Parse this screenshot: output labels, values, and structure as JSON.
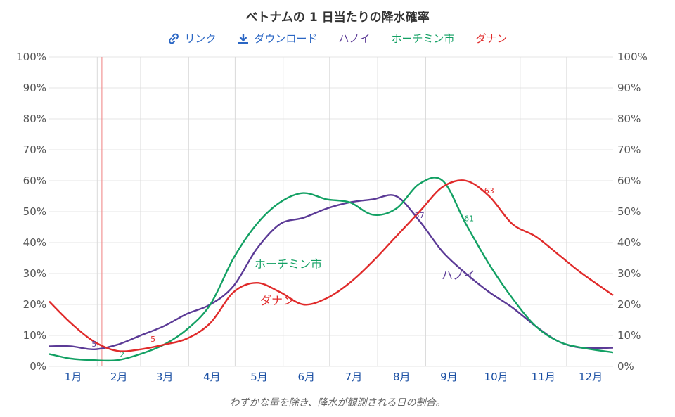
{
  "title": "ベトナムの 1 日当たりの降水確率",
  "caption": "わずかな量を除き、降水が観測される日の割合。",
  "toolbar": {
    "link_label": "リンク",
    "download_label": "ダウンロード"
  },
  "colors": {
    "hanoi": "#5b3a96",
    "hcmc": "#12a063",
    "danang": "#e02a2a",
    "marker": "#f08080",
    "link": "#2a66c4"
  },
  "chart_data": {
    "type": "line",
    "title": "ベトナムの 1 日当たりの降水確率",
    "ylim": [
      0,
      100
    ],
    "yticks": [
      "0%",
      "10%",
      "20%",
      "30%",
      "40%",
      "50%",
      "60%",
      "70%",
      "80%",
      "90%",
      "100%"
    ],
    "months": [
      "1月",
      "2月",
      "3月",
      "4月",
      "5月",
      "6月",
      "7月",
      "8月",
      "9月",
      "10月",
      "11月",
      "12月"
    ],
    "marker_day": 35,
    "x_days": [
      1,
      15,
      30,
      45,
      60,
      75,
      90,
      105,
      120,
      135,
      150,
      165,
      180,
      195,
      210,
      225,
      240,
      255,
      270,
      285,
      300,
      315,
      330,
      345,
      365
    ],
    "series": [
      {
        "name": "ハノイ",
        "color_key": "hanoi",
        "values": [
          6.5,
          6.5,
          5.5,
          7,
          10,
          13,
          17,
          20,
          26,
          38,
          46,
          48,
          51,
          53,
          54,
          55,
          47,
          37,
          30,
          24,
          19,
          13,
          8,
          6,
          6
        ]
      },
      {
        "name": "ホーチミン市",
        "color_key": "hcmc",
        "values": [
          4,
          2.5,
          2,
          2,
          4,
          7,
          12,
          20,
          35,
          46,
          53,
          56,
          54,
          53,
          49,
          51,
          59,
          60,
          46,
          33,
          22,
          13,
          8,
          6,
          4.5
        ]
      },
      {
        "name": "ダナン",
        "color_key": "danang",
        "values": [
          21,
          14,
          8,
          5,
          5.5,
          7,
          9,
          14,
          24,
          27,
          24,
          20,
          22,
          27,
          34,
          42,
          50,
          58,
          60,
          55,
          46,
          42,
          36,
          30,
          23
        ]
      }
    ],
    "data_labels": [
      {
        "series": "ハノイ",
        "day": 30,
        "value": "5"
      },
      {
        "series": "ホーチミン市",
        "day": 48,
        "value": "2"
      },
      {
        "series": "ダナン",
        "day": 68,
        "value": "5"
      },
      {
        "series": "ハノイ",
        "day": 240,
        "value": "57"
      },
      {
        "series": "ホーチミン市",
        "day": 272,
        "value": "61"
      },
      {
        "series": "ダナン",
        "day": 285,
        "value": "63"
      }
    ]
  }
}
